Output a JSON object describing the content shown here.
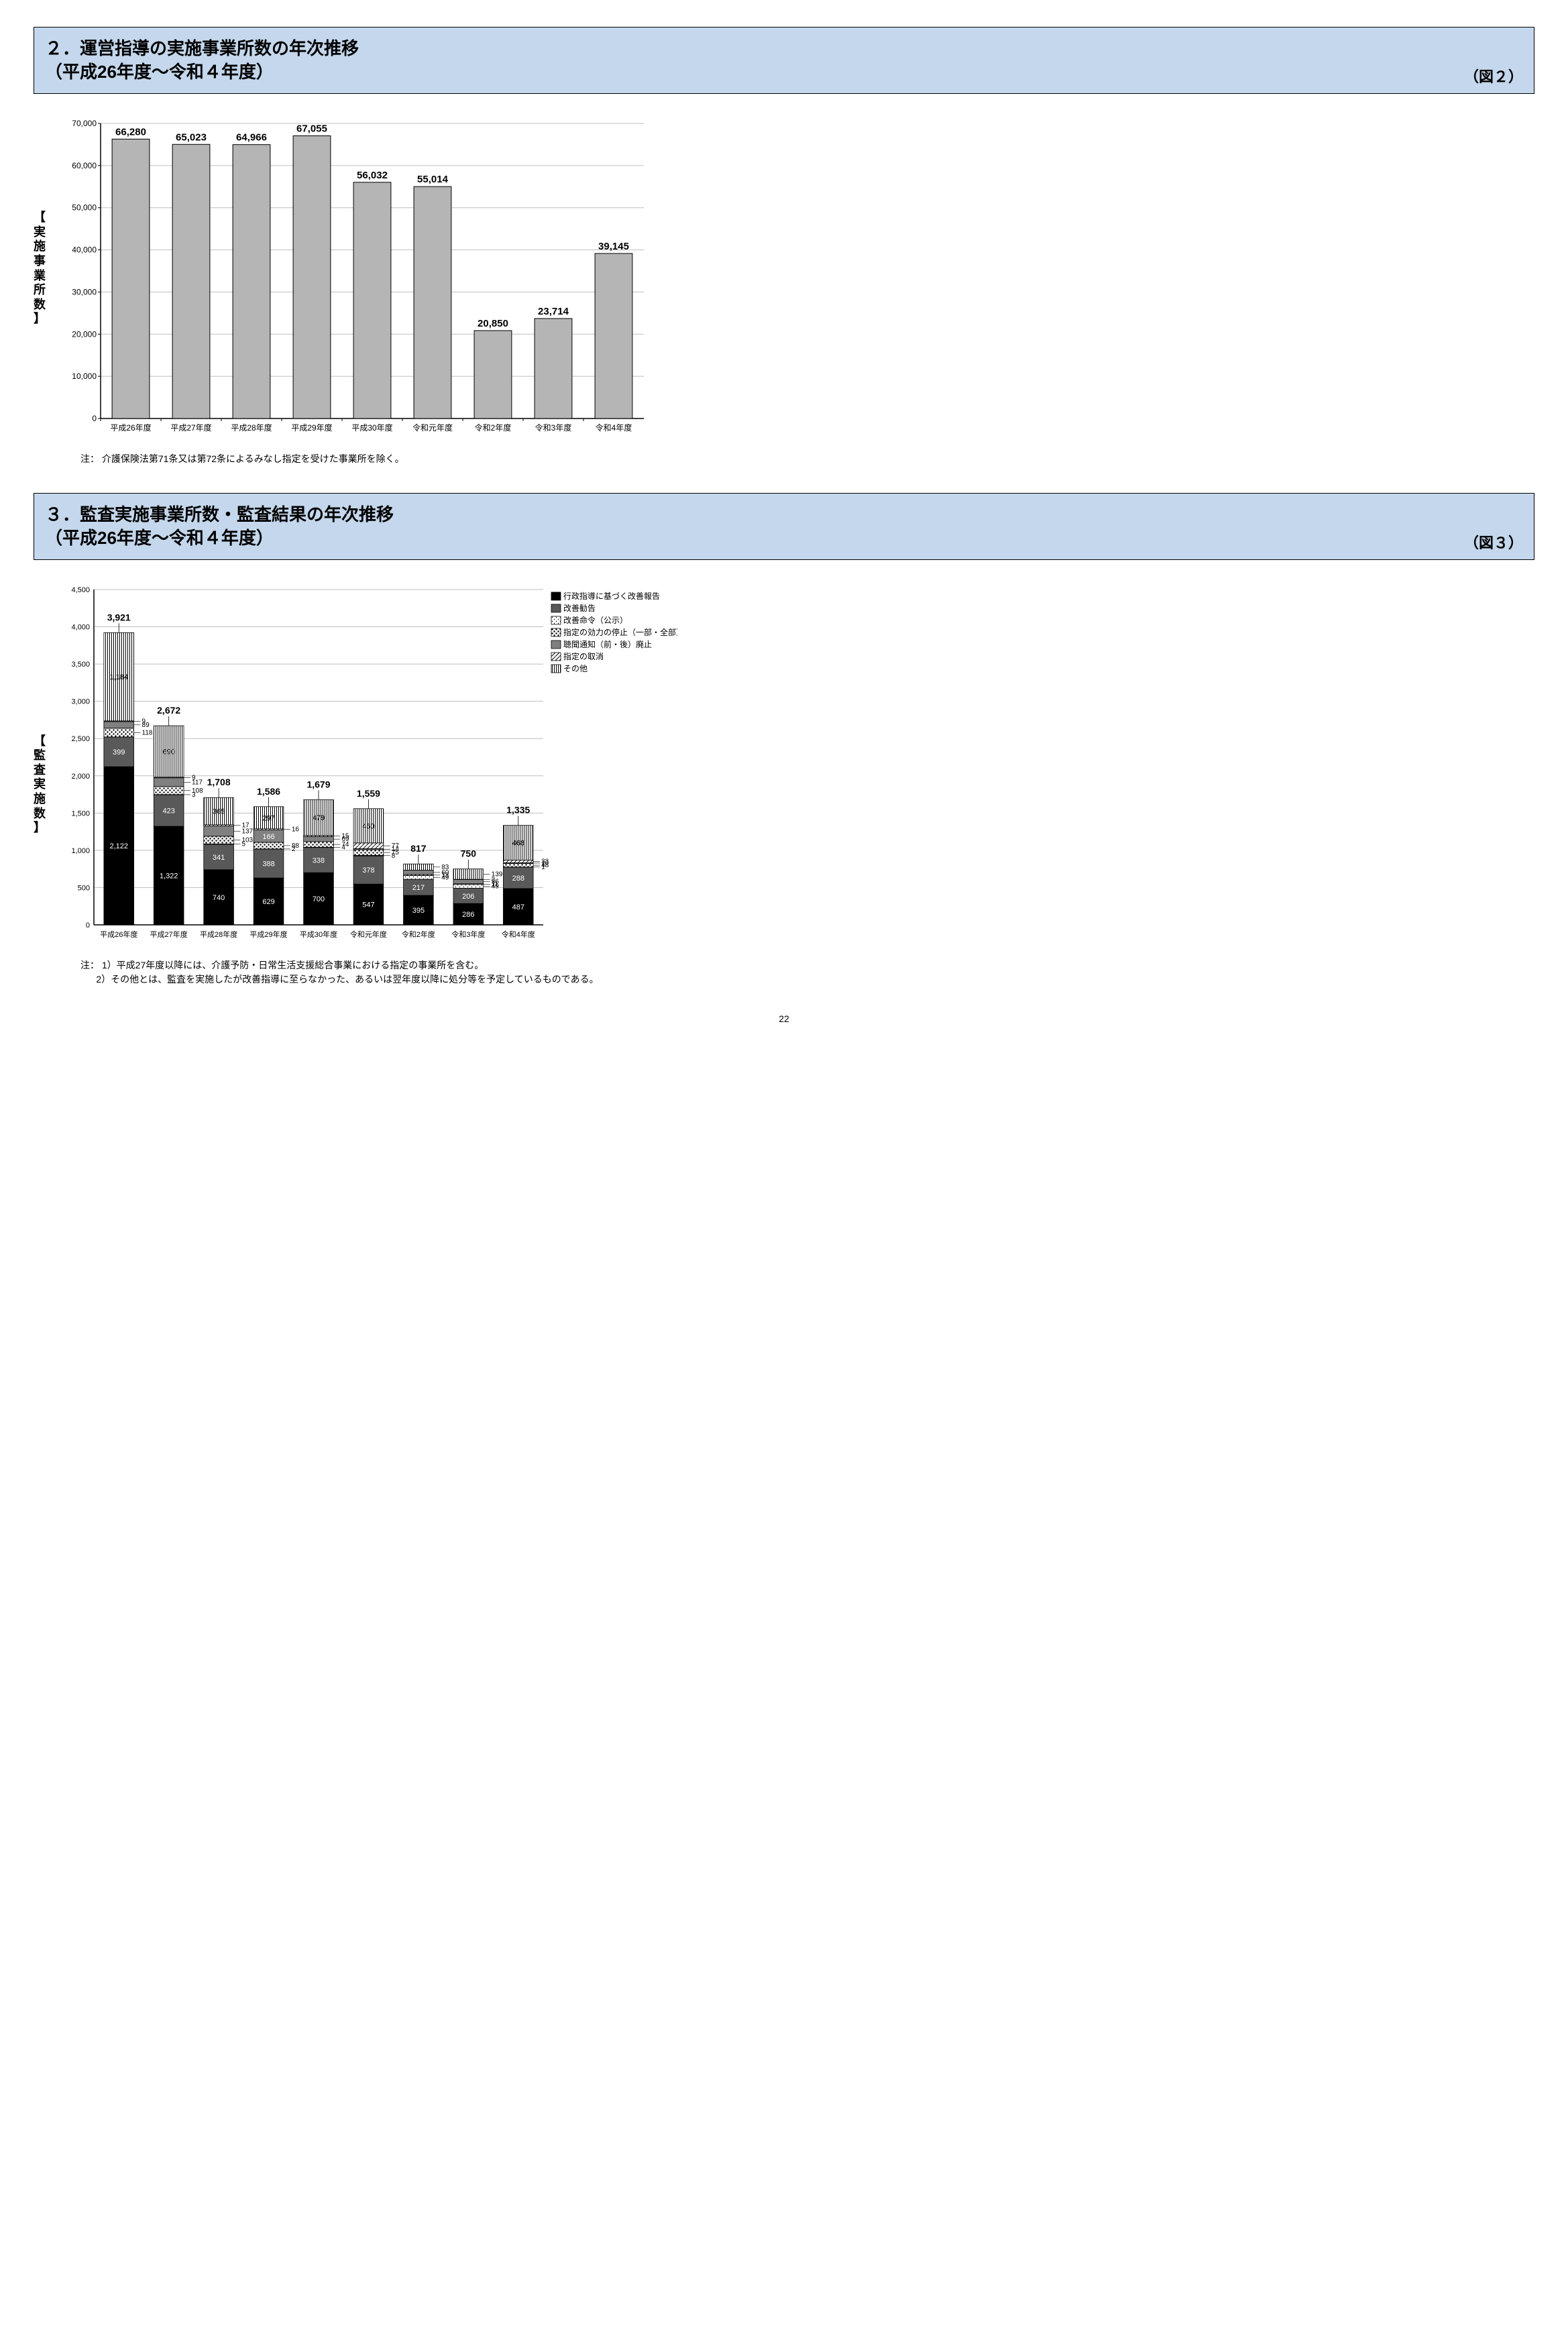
{
  "section2": {
    "title_line1": "２．運営指導の実施事業所数の年次推移",
    "title_line2": "（平成26年度～令和４年度）",
    "fig": "（図２）",
    "chart": {
      "type": "bar",
      "categories": [
        "平成26年度",
        "平成27年度",
        "平成28年度",
        "平成29年度",
        "平成30年度",
        "令和元年度",
        "令和2年度",
        "令和3年度",
        "令和4年度"
      ],
      "values": [
        66280,
        65023,
        64966,
        67055,
        56032,
        55014,
        20850,
        23714,
        39145
      ],
      "labels": [
        "66,280",
        "65,023",
        "64,966",
        "67,055",
        "56,032",
        "55,014",
        "20,850",
        "23,714",
        "39,145"
      ],
      "ylabel": "【 実施事業所数 】",
      "ymax": 70000,
      "ystep": 10000,
      "yticks": [
        "0",
        "10,000",
        "20,000",
        "30,000",
        "40,000",
        "50,000",
        "60,000",
        "70,000"
      ],
      "bar_color": "#b5b5b5",
      "bar_stroke": "#000000",
      "grid_color": "#bfbfbf",
      "axis_color": "#000000",
      "label_fontsize": 15,
      "value_fontsize": 15
    },
    "note": "注： 介護保険法第71条又は第72条によるみなし指定を受けた事業所を除く。"
  },
  "section3": {
    "title_line1": "３．監査実施事業所数・監査結果の年次推移",
    "title_line2": "（平成26年度～令和４年度）",
    "fig": "（図３）",
    "chart": {
      "type": "stacked-bar",
      "categories": [
        "平成26年度",
        "平成27年度",
        "平成28年度",
        "平成29年度",
        "平成30年度",
        "令和元年度",
        "令和2年度",
        "令和3年度",
        "令和4年度"
      ],
      "ylabel": "【 監査実施数 】",
      "ymax": 4500,
      "ystep": 500,
      "yticks": [
        "0",
        "500",
        "1,000",
        "1,500",
        "2,000",
        "2,500",
        "3,000",
        "3,500",
        "4,000",
        "4,500"
      ],
      "totals": [
        "3,921",
        "2,672",
        "1,708",
        "1,586",
        "1,679",
        "1,559",
        "817",
        "750",
        "1,335"
      ],
      "series": [
        {
          "name": "行政指導に基づく改善報告",
          "color": "#000000",
          "pattern": "solid"
        },
        {
          "name": "改善勧告",
          "color": "#595959",
          "pattern": "solid"
        },
        {
          "name": "改善命令（公示）",
          "color": "#ffffff",
          "pattern": "dots-light"
        },
        {
          "name": "指定の効力の停止（一部・全部）",
          "color": "#ffffff",
          "pattern": "dots-heavy"
        },
        {
          "name": "聴聞通知（前・後）廃止",
          "color": "#808080",
          "pattern": "solid"
        },
        {
          "name": "指定の取消",
          "color": "#ffffff",
          "pattern": "diag"
        },
        {
          "name": "その他",
          "color": "#ffffff",
          "pattern": "vstripe"
        }
      ],
      "stacks": [
        {
          "vals": [
            2122,
            399,
            0,
            118,
            89,
            9,
            1184
          ],
          "labels": [
            "2,122",
            "399",
            "",
            "118",
            "89",
            "9",
            "1,184"
          ]
        },
        {
          "vals": [
            1322,
            423,
            3,
            108,
            117,
            9,
            690
          ],
          "labels": [
            "1,322",
            "423",
            "3",
            "108",
            "117",
            "9",
            "690"
          ]
        },
        {
          "vals": [
            740,
            341,
            5,
            103,
            137,
            17,
            365
          ],
          "labels": [
            "740",
            "341",
            "5",
            "103",
            "137",
            "17",
            "365"
          ]
        },
        {
          "vals": [
            629,
            388,
            2,
            88,
            166,
            16,
            297
          ],
          "labels": [
            "629",
            "388",
            "2",
            "88",
            "166",
            "16",
            "297"
          ]
        },
        {
          "vals": [
            700,
            338,
            4,
            74,
            69,
            15,
            479
          ],
          "labels": [
            "700",
            "338",
            "4",
            "74",
            "69",
            "15",
            "479"
          ]
        },
        {
          "vals": [
            547,
            378,
            8,
            75,
            14,
            77,
            460
          ],
          "labels": [
            "547",
            "378",
            "8",
            "75",
            "14",
            "77",
            "460"
          ]
        },
        {
          "vals": [
            395,
            217,
            49,
            13,
            60,
            0,
            83
          ],
          "labels": [
            "395",
            "217",
            "49",
            "13",
            "60",
            "",
            "83"
          ]
        },
        {
          "vals": [
            286,
            206,
            49,
            11,
            56,
            3,
            139
          ],
          "labels": [
            "286",
            "206",
            "49",
            "11",
            "56",
            "3",
            "139"
          ]
        },
        {
          "vals": [
            487,
            288,
            1,
            48,
            10,
            33,
            468
          ],
          "labels": [
            "487",
            "288",
            "1",
            "48",
            "10",
            "33",
            "468"
          ]
        }
      ],
      "grid_color": "#bfbfbf",
      "axis_color": "#000000"
    },
    "note_prefix": "注：",
    "note1": "1）平成27年度以降には、介護予防・日常生活支援総合事業における指定の事業所を含む。",
    "note2": "2）その他とは、監査を実施したが改善指導に至らなかった、あるいは翌年度以降に処分等を予定しているものである。"
  },
  "page": "22"
}
